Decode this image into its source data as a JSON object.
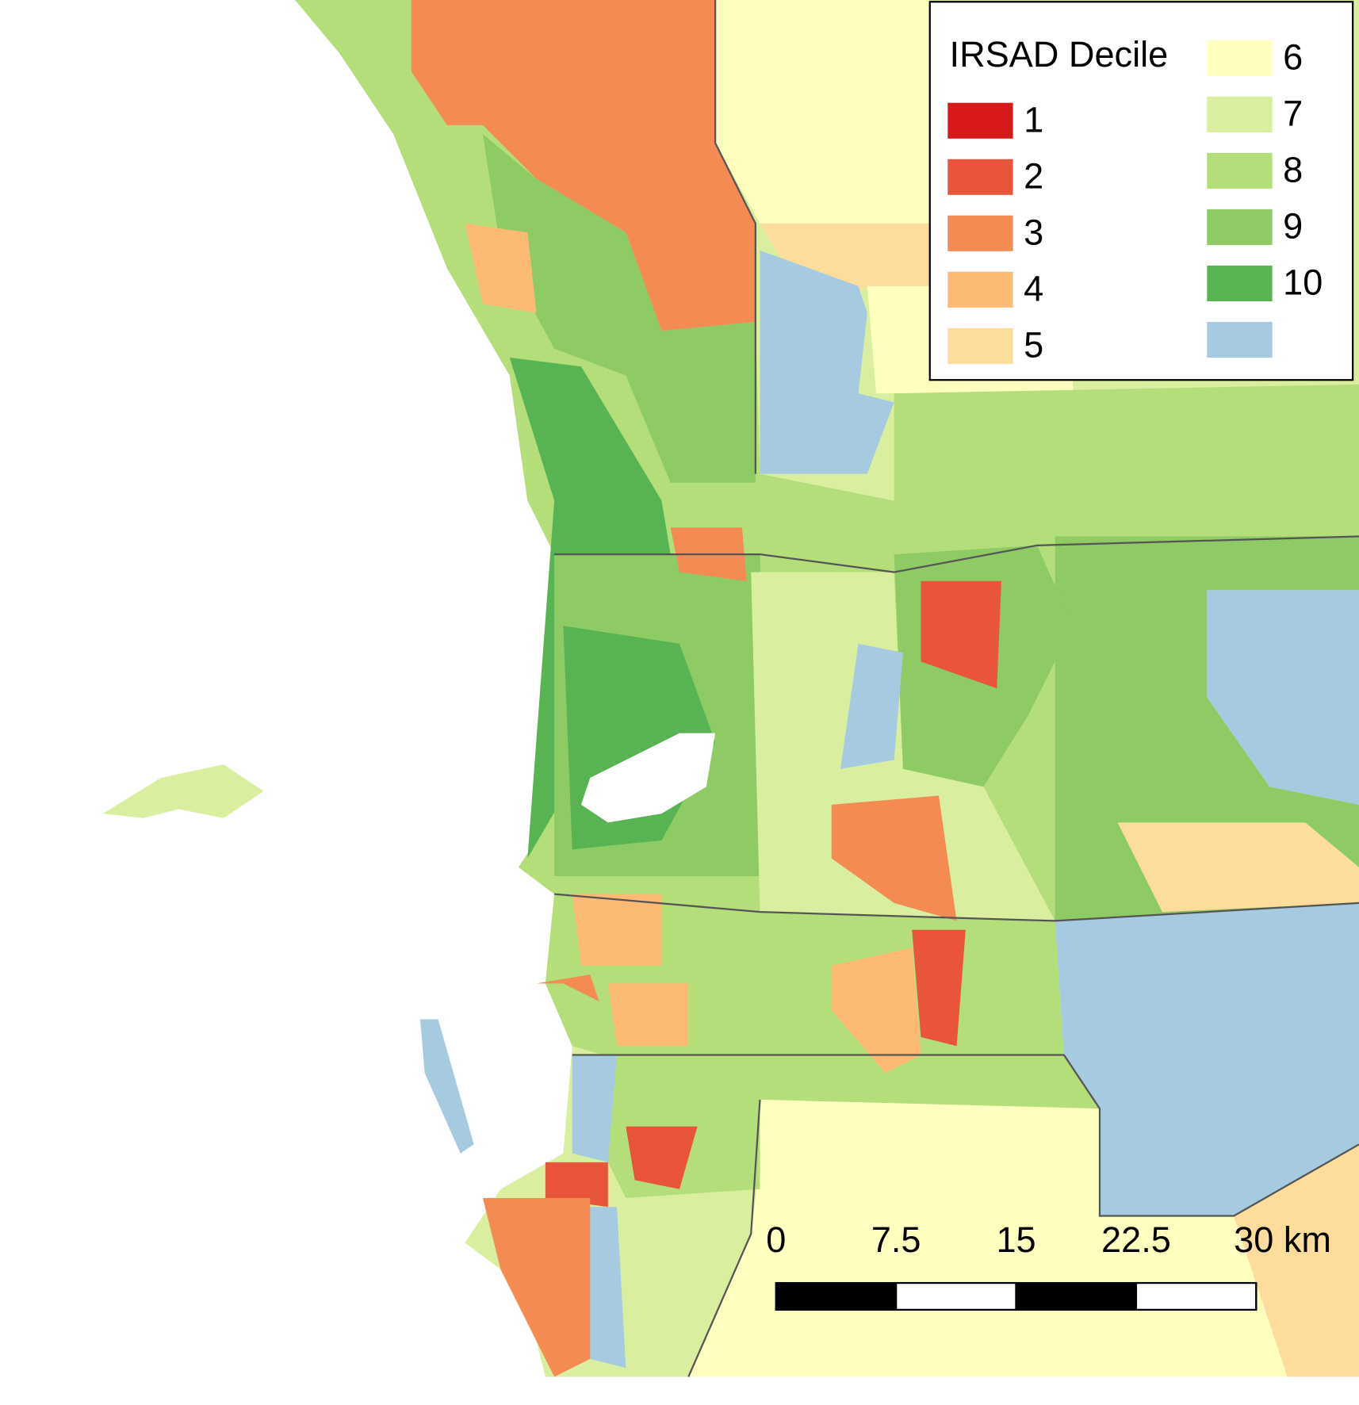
{
  "legend": {
    "title": "IRSAD Decile",
    "items": [
      {
        "label": "1",
        "color": "#d7191c"
      },
      {
        "label": "2",
        "color": "#e8553a"
      },
      {
        "label": "3",
        "color": "#f38b53"
      },
      {
        "label": "4",
        "color": "#fdba74"
      },
      {
        "label": "5",
        "color": "#fedc9c"
      },
      {
        "label": "6",
        "color": "#ffffc0"
      },
      {
        "label": "7",
        "color": "#d9ef9f"
      },
      {
        "label": "8",
        "color": "#b4de7a"
      },
      {
        "label": "9",
        "color": "#8ecb65"
      },
      {
        "label": "10",
        "color": "#58b353"
      },
      {
        "color": "#a6cbe0"
      }
    ]
  },
  "scale_bar": {
    "range": [
      0,
      30
    ],
    "ticks": [
      0,
      7.5,
      15,
      22.5,
      {
        "value": 30,
        "label": "30 km"
      }
    ]
  }
}
